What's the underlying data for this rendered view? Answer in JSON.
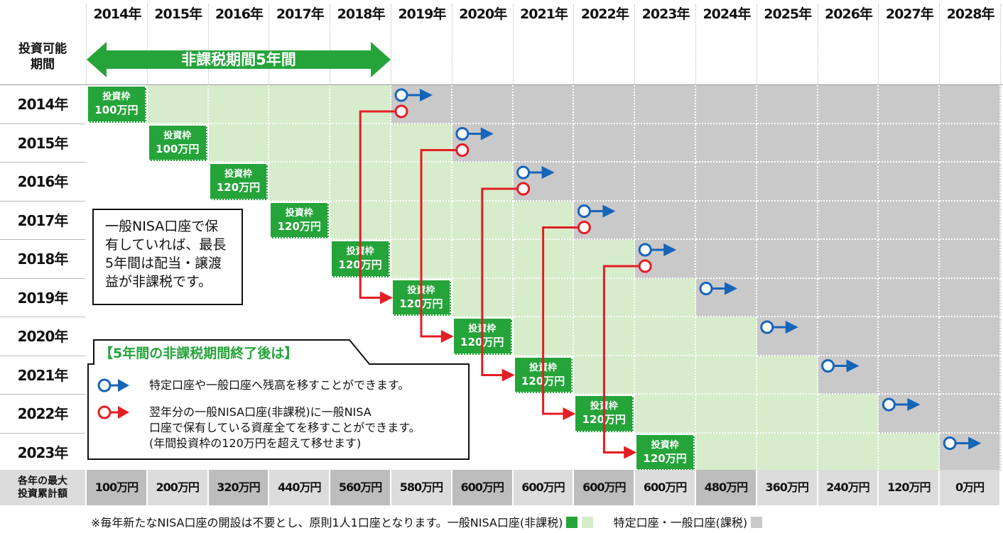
{
  "header_years": [
    "2014年",
    "2015年",
    "2016年",
    "2017年",
    "2018年",
    "2019年",
    "2020年",
    "2021年",
    "2022年",
    "2023年",
    "2024年",
    "2025年",
    "2026年",
    "2027年",
    "2028年"
  ],
  "period_label": "投資可能\n期間",
  "tax_free_banner": "非課税期間5年間",
  "rows": [
    {
      "year": "2014年",
      "quota_label": "投資枠",
      "quota": "100万円"
    },
    {
      "year": "2015年",
      "quota_label": "投資枠",
      "quota": "100万円"
    },
    {
      "year": "2016年",
      "quota_label": "投資枠",
      "quota": "120万円"
    },
    {
      "year": "2017年",
      "quota_label": "投資枠",
      "quota": "120万円"
    },
    {
      "year": "2018年",
      "quota_label": "投資枠",
      "quota": "120万円"
    },
    {
      "year": "2019年",
      "quota_label": "投資枠",
      "quota": "120万円"
    },
    {
      "year": "2020年",
      "quota_label": "投資枠",
      "quota": "120万円"
    },
    {
      "year": "2021年",
      "quota_label": "投資枠",
      "quota": "120万円"
    },
    {
      "year": "2022年",
      "quota_label": "投資枠",
      "quota": "120万円"
    },
    {
      "year": "2023年",
      "quota_label": "投資枠",
      "quota": "120万円"
    }
  ],
  "totals_label": "各年の最大\n投資累計額",
  "totals": [
    "100万円",
    "200万円",
    "320万円",
    "440万円",
    "560万円",
    "580万円",
    "600万円",
    "600万円",
    "600万円",
    "600万円",
    "480万円",
    "360万円",
    "240万円",
    "120万円",
    "0万円"
  ],
  "note": "一般NISA口座で保\n有していれば、最長\n5年間は配当・譲渡\n益が非課税です。",
  "legend": {
    "title": "【5年間の非課税期間終了後は】",
    "blue": "特定口座や一般口座へ残高を移すことができます。",
    "red": "翌年分の一般NISA口座(非課税)に一般NISA\n口座で保有している資産全てを移すことができます。\n(年間投資枠の120万円を超えて移せます)"
  },
  "footer": "※毎年新たなNISA口座の開設は不要とし、原則1人1口座となります。一般NISA口座(非課税)",
  "footer_right": "特定口座・一般口座(課税)",
  "colors": {
    "green": "#25a43a",
    "light_green": "#d7eccb",
    "gray": "#c9c9c9",
    "blue": "#1565b8",
    "red": "#e31e24"
  }
}
